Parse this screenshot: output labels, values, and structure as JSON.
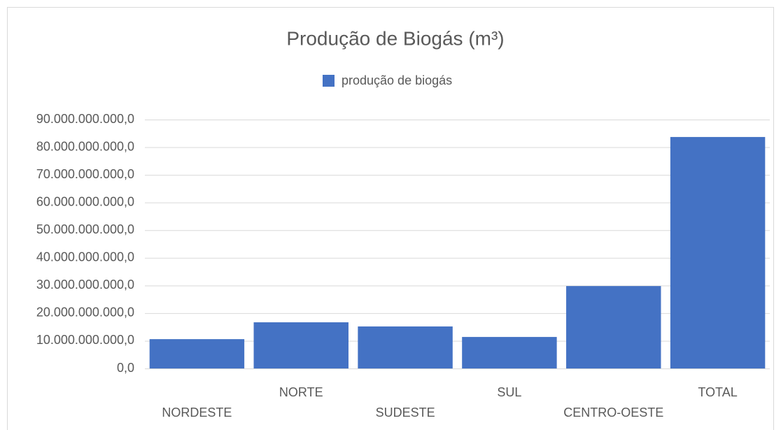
{
  "chart_data": {
    "type": "bar",
    "title": "Produção de Biogás (m³)",
    "categories": [
      "NORDESTE",
      "NORTE",
      "SUDESTE",
      "SUL",
      "CENTRO-OESTE",
      "TOTAL"
    ],
    "series": [
      {
        "name": "produção de biogás",
        "color": "#4472c4",
        "values": [
          10600000000,
          16700000000,
          15200000000,
          11400000000,
          29800000000,
          83700000000
        ]
      }
    ],
    "ylim": [
      0,
      90000000000
    ],
    "yticks": [
      {
        "value": 0,
        "label": "0,0"
      },
      {
        "value": 10000000000,
        "label": "10.000.000.000,0"
      },
      {
        "value": 20000000000,
        "label": "20.000.000.000,0"
      },
      {
        "value": 30000000000,
        "label": "30.000.000.000,0"
      },
      {
        "value": 40000000000,
        "label": "40.000.000.000,0"
      },
      {
        "value": 50000000000,
        "label": "50.000.000.000,0"
      },
      {
        "value": 60000000000,
        "label": "60.000.000.000,0"
      },
      {
        "value": 70000000000,
        "label": "70.000.000.000,0"
      },
      {
        "value": 80000000000,
        "label": "80.000.000.000,0"
      },
      {
        "value": 90000000000,
        "label": "90.000.000.000,0"
      }
    ],
    "grid": true,
    "legend": "top"
  }
}
